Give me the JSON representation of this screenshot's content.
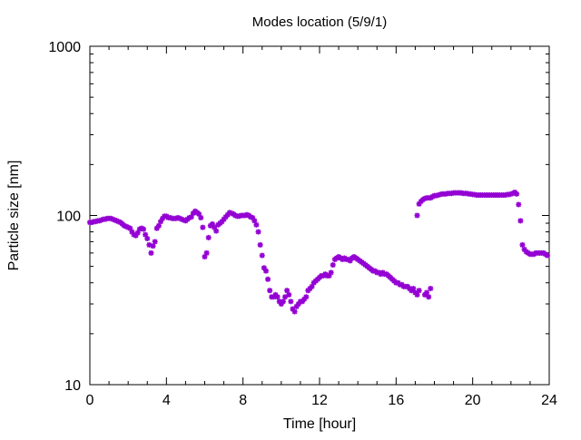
{
  "chart_data": {
    "type": "scatter",
    "title": "Modes location (5/9/1)",
    "xlabel": "Time [hour]",
    "ylabel": "Particle size [nm]",
    "xlim": [
      0,
      24
    ],
    "ylim": [
      10,
      1000
    ],
    "yscale": "log",
    "grid": false,
    "legend": "none",
    "marker": "asterisk",
    "color": "#9400d3",
    "x_ticks": [
      0,
      4,
      8,
      12,
      16,
      20,
      24
    ],
    "x_tick_labels": [
      "0",
      "4",
      "8",
      "12",
      "16",
      "20",
      "24"
    ],
    "y_ticks": [
      10,
      100,
      1000
    ],
    "y_tick_labels": [
      "10",
      "100",
      "1000"
    ],
    "series": [
      {
        "points": [
          [
            0.0,
            91
          ],
          [
            0.1,
            91
          ],
          [
            0.2,
            92
          ],
          [
            0.3,
            92
          ],
          [
            0.4,
            93
          ],
          [
            0.5,
            93
          ],
          [
            0.6,
            94
          ],
          [
            0.7,
            95
          ],
          [
            0.8,
            95
          ],
          [
            0.9,
            96
          ],
          [
            1.0,
            96
          ],
          [
            1.1,
            96
          ],
          [
            1.2,
            95
          ],
          [
            1.3,
            94
          ],
          [
            1.4,
            93
          ],
          [
            1.5,
            92
          ],
          [
            1.6,
            91
          ],
          [
            1.7,
            89
          ],
          [
            1.8,
            87
          ],
          [
            1.9,
            86
          ],
          [
            2.0,
            85
          ],
          [
            2.1,
            84
          ],
          [
            2.2,
            80
          ],
          [
            2.3,
            77
          ],
          [
            2.4,
            76
          ],
          [
            2.5,
            79
          ],
          [
            2.6,
            83
          ],
          [
            2.7,
            84
          ],
          [
            2.8,
            83
          ],
          [
            2.9,
            77
          ],
          [
            3.0,
            73
          ],
          [
            3.1,
            67
          ],
          [
            3.2,
            60
          ],
          [
            3.3,
            66
          ],
          [
            3.4,
            70
          ],
          [
            3.5,
            84
          ],
          [
            3.6,
            87
          ],
          [
            3.7,
            92
          ],
          [
            3.8,
            96
          ],
          [
            3.9,
            99
          ],
          [
            4.0,
            99
          ],
          [
            4.1,
            97
          ],
          [
            4.2,
            97
          ],
          [
            4.3,
            96
          ],
          [
            4.4,
            96
          ],
          [
            4.5,
            96
          ],
          [
            4.6,
            97
          ],
          [
            4.7,
            96
          ],
          [
            4.8,
            95
          ],
          [
            4.9,
            94
          ],
          [
            5.0,
            93
          ],
          [
            5.1,
            95
          ],
          [
            5.2,
            97
          ],
          [
            5.3,
            98
          ],
          [
            5.4,
            103
          ],
          [
            5.5,
            106
          ],
          [
            5.6,
            104
          ],
          [
            5.7,
            102
          ],
          [
            5.8,
            97
          ],
          [
            5.9,
            85
          ],
          [
            6.0,
            57
          ],
          [
            6.1,
            60
          ],
          [
            6.2,
            74
          ],
          [
            6.3,
            87
          ],
          [
            6.4,
            89
          ],
          [
            6.5,
            85
          ],
          [
            6.6,
            81
          ],
          [
            6.7,
            88
          ],
          [
            6.8,
            90
          ],
          [
            6.9,
            92
          ],
          [
            7.0,
            95
          ],
          [
            7.1,
            98
          ],
          [
            7.2,
            101
          ],
          [
            7.3,
            104
          ],
          [
            7.4,
            103
          ],
          [
            7.5,
            102
          ],
          [
            7.6,
            100
          ],
          [
            7.7,
            99
          ],
          [
            7.8,
            99
          ],
          [
            7.9,
            100
          ],
          [
            8.0,
            100
          ],
          [
            8.1,
            100
          ],
          [
            8.2,
            101
          ],
          [
            8.3,
            100
          ],
          [
            8.4,
            98
          ],
          [
            8.5,
            97
          ],
          [
            8.6,
            93
          ],
          [
            8.7,
            88
          ],
          [
            8.8,
            80
          ],
          [
            8.9,
            67
          ],
          [
            9.0,
            58
          ],
          [
            9.1,
            49
          ],
          [
            9.2,
            47
          ],
          [
            9.3,
            42
          ],
          [
            9.4,
            36
          ],
          [
            9.5,
            33
          ],
          [
            9.6,
            33
          ],
          [
            9.7,
            34
          ],
          [
            9.8,
            33
          ],
          [
            9.9,
            31
          ],
          [
            10.0,
            30
          ],
          [
            10.1,
            31
          ],
          [
            10.2,
            33
          ],
          [
            10.3,
            36
          ],
          [
            10.4,
            34
          ],
          [
            10.5,
            31
          ],
          [
            10.6,
            28
          ],
          [
            10.7,
            27
          ],
          [
            10.8,
            29
          ],
          [
            10.9,
            30
          ],
          [
            11.0,
            31
          ],
          [
            11.1,
            31
          ],
          [
            11.2,
            32
          ],
          [
            11.3,
            33
          ],
          [
            11.4,
            36
          ],
          [
            11.5,
            37
          ],
          [
            11.6,
            38
          ],
          [
            11.7,
            40
          ],
          [
            11.8,
            41
          ],
          [
            11.9,
            42
          ],
          [
            12.0,
            43
          ],
          [
            12.1,
            44
          ],
          [
            12.2,
            44
          ],
          [
            12.3,
            45
          ],
          [
            12.4,
            44
          ],
          [
            12.5,
            44
          ],
          [
            12.6,
            46
          ],
          [
            12.7,
            51
          ],
          [
            12.8,
            55
          ],
          [
            12.9,
            56
          ],
          [
            13.0,
            57
          ],
          [
            13.1,
            56
          ],
          [
            13.2,
            55
          ],
          [
            13.3,
            56
          ],
          [
            13.4,
            55
          ],
          [
            13.5,
            55
          ],
          [
            13.6,
            54
          ],
          [
            13.7,
            56
          ],
          [
            13.8,
            57
          ],
          [
            13.9,
            56
          ],
          [
            14.0,
            55
          ],
          [
            14.1,
            54
          ],
          [
            14.2,
            53
          ],
          [
            14.3,
            52
          ],
          [
            14.4,
            51
          ],
          [
            14.5,
            50
          ],
          [
            14.6,
            49
          ],
          [
            14.7,
            48
          ],
          [
            14.8,
            47
          ],
          [
            14.9,
            47
          ],
          [
            15.0,
            46
          ],
          [
            15.1,
            46
          ],
          [
            15.2,
            45
          ],
          [
            15.3,
            46
          ],
          [
            15.4,
            45
          ],
          [
            15.5,
            45
          ],
          [
            15.6,
            44
          ],
          [
            15.7,
            43
          ],
          [
            15.8,
            42
          ],
          [
            15.9,
            41
          ],
          [
            16.0,
            40
          ],
          [
            16.1,
            40
          ],
          [
            16.2,
            39
          ],
          [
            16.3,
            39
          ],
          [
            16.4,
            38
          ],
          [
            16.5,
            38
          ],
          [
            16.6,
            38
          ],
          [
            16.7,
            37
          ],
          [
            16.8,
            36
          ],
          [
            16.9,
            37
          ],
          [
            17.0,
            35
          ],
          [
            17.1,
            34
          ],
          [
            17.2,
            36
          ],
          [
            17.5,
            34
          ],
          [
            17.6,
            35
          ],
          [
            17.7,
            33
          ],
          [
            17.8,
            37
          ],
          [
            17.1,
            100
          ],
          [
            17.2,
            117
          ],
          [
            17.3,
            121
          ],
          [
            17.4,
            124
          ],
          [
            17.5,
            126
          ],
          [
            17.6,
            127
          ],
          [
            17.7,
            127
          ],
          [
            17.8,
            127
          ],
          [
            17.9,
            129
          ],
          [
            18.0,
            131
          ],
          [
            18.1,
            131
          ],
          [
            18.2,
            132
          ],
          [
            18.3,
            133
          ],
          [
            18.4,
            134
          ],
          [
            18.5,
            134
          ],
          [
            18.6,
            134
          ],
          [
            18.7,
            135
          ],
          [
            18.8,
            135
          ],
          [
            18.9,
            135
          ],
          [
            19.0,
            136
          ],
          [
            19.1,
            136
          ],
          [
            19.2,
            136
          ],
          [
            19.3,
            136
          ],
          [
            19.4,
            136
          ],
          [
            19.5,
            135
          ],
          [
            19.6,
            135
          ],
          [
            19.7,
            135
          ],
          [
            19.8,
            134
          ],
          [
            19.9,
            134
          ],
          [
            20.0,
            133
          ],
          [
            20.1,
            133
          ],
          [
            20.2,
            132
          ],
          [
            20.3,
            132
          ],
          [
            20.4,
            132
          ],
          [
            20.5,
            132
          ],
          [
            20.6,
            132
          ],
          [
            20.7,
            132
          ],
          [
            20.8,
            132
          ],
          [
            20.9,
            132
          ],
          [
            21.0,
            132
          ],
          [
            21.1,
            132
          ],
          [
            21.2,
            132
          ],
          [
            21.3,
            132
          ],
          [
            21.4,
            132
          ],
          [
            21.5,
            132
          ],
          [
            21.6,
            132
          ],
          [
            21.7,
            132
          ],
          [
            21.8,
            133
          ],
          [
            21.9,
            133
          ],
          [
            22.0,
            134
          ],
          [
            22.1,
            135
          ],
          [
            22.2,
            137
          ],
          [
            22.3,
            134
          ],
          [
            22.4,
            116
          ],
          [
            22.5,
            93
          ],
          [
            22.6,
            67
          ],
          [
            22.7,
            63
          ],
          [
            22.8,
            61
          ],
          [
            22.9,
            60
          ],
          [
            23.0,
            59
          ],
          [
            23.1,
            59
          ],
          [
            23.2,
            59
          ],
          [
            23.3,
            60
          ],
          [
            23.4,
            60
          ],
          [
            23.5,
            60
          ],
          [
            23.6,
            60
          ],
          [
            23.7,
            60
          ],
          [
            23.8,
            59
          ],
          [
            23.9,
            58
          ]
        ]
      }
    ]
  }
}
